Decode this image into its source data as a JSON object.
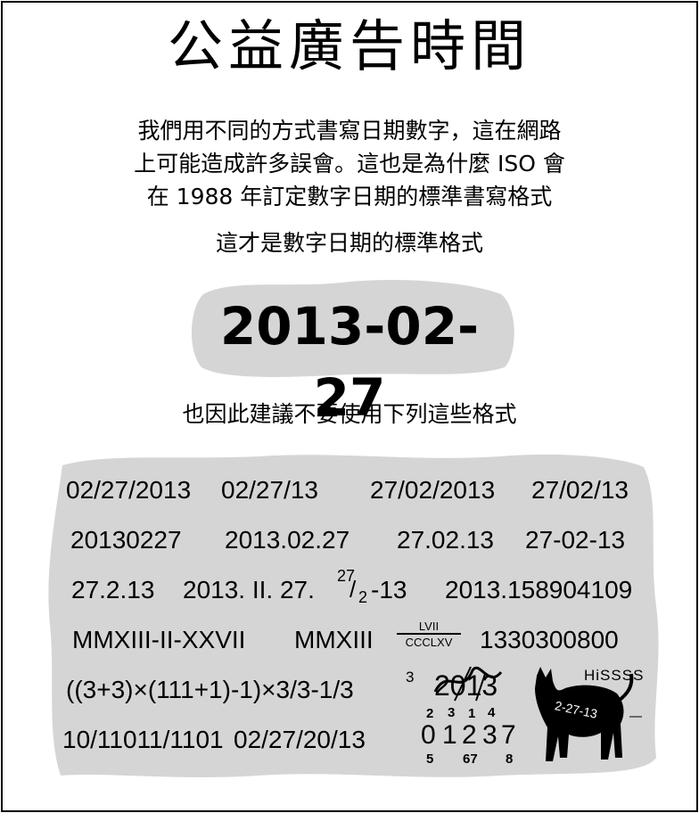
{
  "title": "公益廣告時間",
  "intro_lines": [
    "我們用不同的方式書寫日期數字，這在網路",
    "上可能造成許多誤會。這也是為什麼 ISO 會",
    "在 1988 年訂定數字日期的標準書寫格式"
  ],
  "standard_heading": "這才是數字日期的標準格式",
  "standard_date": "2013-02-27",
  "discouraged_heading": "也因此建議不要使用下列這些格式",
  "formats": {
    "row1": [
      "02/27/2013",
      "02/27/13",
      "27/02/2013",
      "27/02/13"
    ],
    "row2": [
      "20130227",
      "2013.02.27",
      "27.02.13",
      "27-02-13"
    ],
    "row3": [
      "27.2.13",
      "2013. II. 27.",
      "-13",
      "2013.158904109"
    ],
    "row3_frac": {
      "num": "27",
      "den": "2"
    },
    "row4": [
      "MMXIII-II-XXVII",
      "MMXIII",
      "1330300800"
    ],
    "row4_frac": {
      "num": "LVII",
      "den": "CCCLXV"
    },
    "row5_expr": "((3+3)×(111+1)-1)×3/3-1/3",
    "row5_exp": "3",
    "row5_scribble": "2013",
    "hiss": "HiSSSS",
    "cat_label": "2-27-13",
    "row6": [
      "10/11011/1101",
      "02/27/20/13"
    ],
    "stack": {
      "top": [
        "2",
        "3",
        "1",
        "4"
      ],
      "mid": [
        "0",
        "1",
        "2",
        "3",
        "7"
      ],
      "bot": [
        "5",
        "67",
        "8"
      ]
    }
  },
  "colors": {
    "bubble": "#d5d5d5",
    "ink": "#000000",
    "background": "#ffffff"
  }
}
